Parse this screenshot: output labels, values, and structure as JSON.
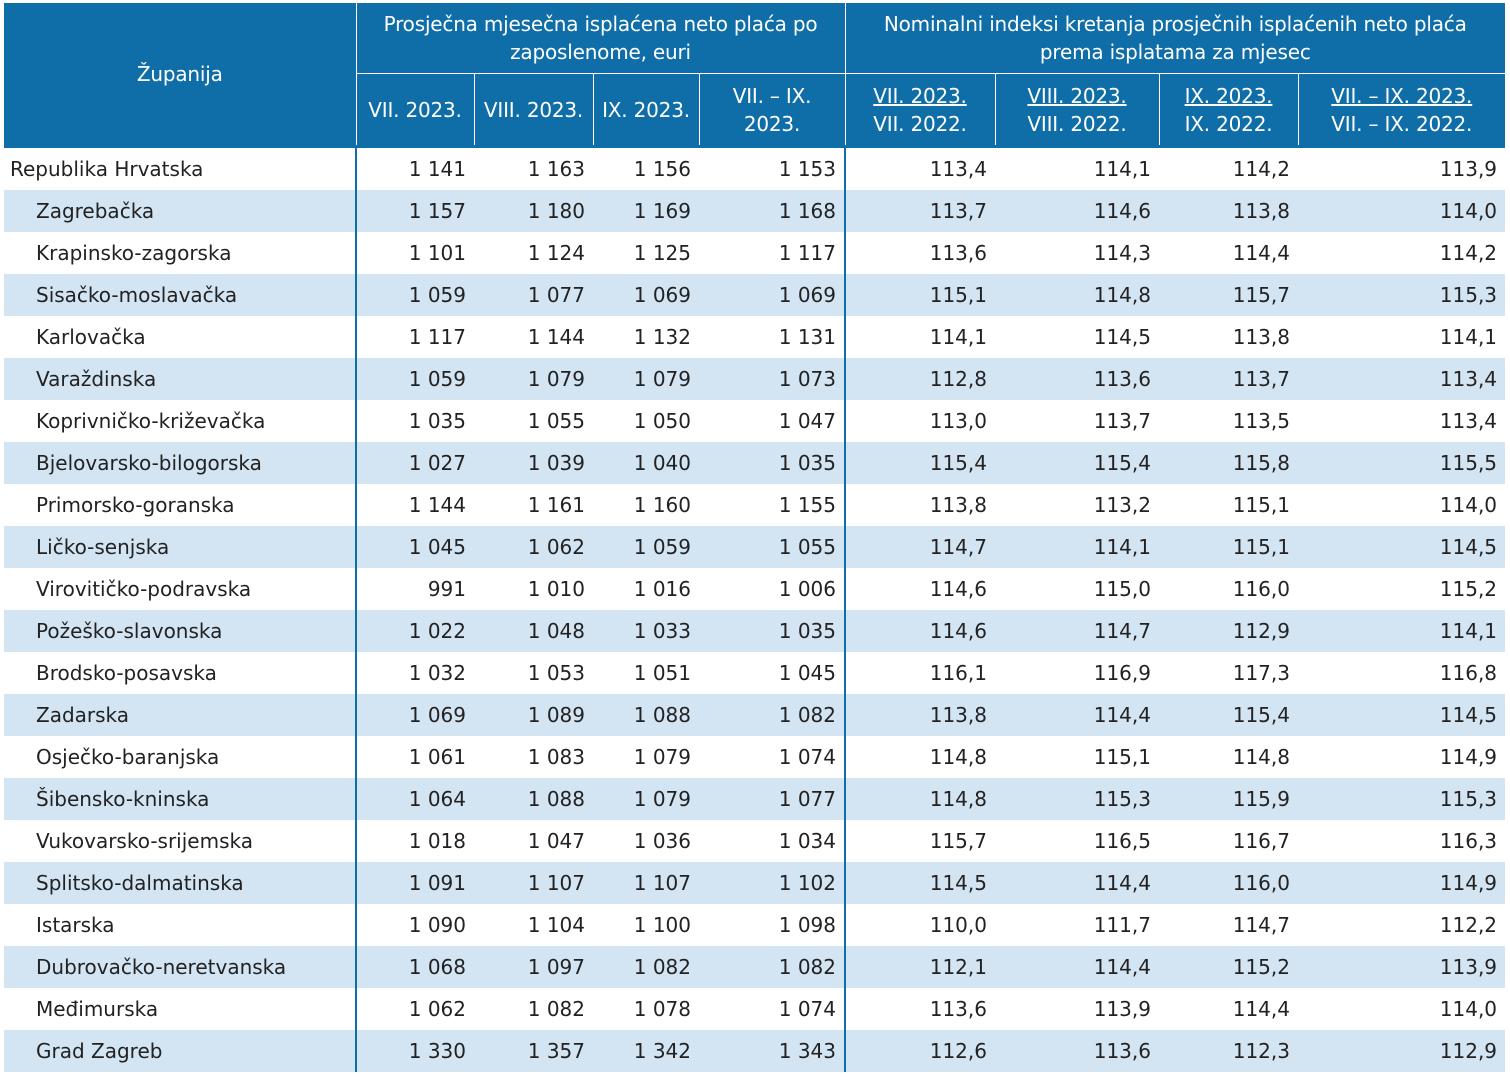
{
  "header": {
    "county": "Županija",
    "group_salary": "Prosječna mjesečna isplaćena neto plaća po zaposlenome, euri",
    "group_index": "Nominalni indeksi kretanja prosječnih isplaćenih neto plaća prema isplatama za mjesec",
    "salary_cols": [
      "VII. 2023.",
      "VIII. 2023.",
      "IX. 2023.",
      "VII. – IX. 2023."
    ],
    "index_cols": [
      {
        "top": "VII. 2023.",
        "bottom": "VII. 2022."
      },
      {
        "top": "VIII. 2023.",
        "bottom": "VIII. 2022."
      },
      {
        "top": "IX. 2023.",
        "bottom": "IX. 2022."
      },
      {
        "top": "VII. – IX. 2023.",
        "bottom": "VII. – IX. 2022."
      }
    ]
  },
  "rows": [
    {
      "name": "Republika Hrvatska",
      "values": [
        "1 141",
        "1 163",
        "1 156",
        "1 153",
        "113,4",
        "114,1",
        "114,2",
        "113,9"
      ]
    },
    {
      "name": "Zagrebačka",
      "values": [
        "1 157",
        "1 180",
        "1 169",
        "1 168",
        "113,7",
        "114,6",
        "113,8",
        "114,0"
      ]
    },
    {
      "name": "Krapinsko-zagorska",
      "values": [
        "1 101",
        "1 124",
        "1 125",
        "1 117",
        "113,6",
        "114,3",
        "114,4",
        "114,2"
      ]
    },
    {
      "name": "Sisačko-moslavačka",
      "values": [
        "1 059",
        "1 077",
        "1 069",
        "1 069",
        "115,1",
        "114,8",
        "115,7",
        "115,3"
      ]
    },
    {
      "name": "Karlovačka",
      "values": [
        "1 117",
        "1 144",
        "1 132",
        "1 131",
        "114,1",
        "114,5",
        "113,8",
        "114,1"
      ]
    },
    {
      "name": "Varaždinska",
      "values": [
        "1 059",
        "1 079",
        "1 079",
        "1 073",
        "112,8",
        "113,6",
        "113,7",
        "113,4"
      ]
    },
    {
      "name": "Koprivničko-križevačka",
      "values": [
        "1 035",
        "1 055",
        "1 050",
        "1 047",
        "113,0",
        "113,7",
        "113,5",
        "113,4"
      ]
    },
    {
      "name": "Bjelovarsko-bilogorska",
      "values": [
        "1 027",
        "1 039",
        "1 040",
        "1 035",
        "115,4",
        "115,4",
        "115,8",
        "115,5"
      ]
    },
    {
      "name": "Primorsko-goranska",
      "values": [
        "1 144",
        "1 161",
        "1 160",
        "1 155",
        "113,8",
        "113,2",
        "115,1",
        "114,0"
      ]
    },
    {
      "name": "Ličko-senjska",
      "values": [
        "1 045",
        "1 062",
        "1 059",
        "1 055",
        "114,7",
        "114,1",
        "115,1",
        "114,5"
      ]
    },
    {
      "name": "Virovitičko-podravska",
      "values": [
        "991",
        "1 010",
        "1 016",
        "1 006",
        "114,6",
        "115,0",
        "116,0",
        "115,2"
      ]
    },
    {
      "name": "Požeško-slavonska",
      "values": [
        "1 022",
        "1 048",
        "1 033",
        "1 035",
        "114,6",
        "114,7",
        "112,9",
        "114,1"
      ]
    },
    {
      "name": "Brodsko-posavska",
      "values": [
        "1 032",
        "1 053",
        "1 051",
        "1 045",
        "116,1",
        "116,9",
        "117,3",
        "116,8"
      ]
    },
    {
      "name": "Zadarska",
      "values": [
        "1 069",
        "1 089",
        "1 088",
        "1 082",
        "113,8",
        "114,4",
        "115,4",
        "114,5"
      ]
    },
    {
      "name": "Osječko-baranjska",
      "values": [
        "1 061",
        "1 083",
        "1 079",
        "1 074",
        "114,8",
        "115,1",
        "114,8",
        "114,9"
      ]
    },
    {
      "name": "Šibensko-kninska",
      "values": [
        "1 064",
        "1 088",
        "1 079",
        "1 077",
        "114,8",
        "115,3",
        "115,9",
        "115,3"
      ]
    },
    {
      "name": "Vukovarsko-srijemska",
      "values": [
        "1 018",
        "1 047",
        "1 036",
        "1 034",
        "115,7",
        "116,5",
        "116,7",
        "116,3"
      ]
    },
    {
      "name": "Splitsko-dalmatinska",
      "values": [
        "1 091",
        "1 107",
        "1 107",
        "1 102",
        "114,5",
        "114,4",
        "116,0",
        "114,9"
      ]
    },
    {
      "name": "Istarska",
      "values": [
        "1 090",
        "1 104",
        "1 100",
        "1 098",
        "110,0",
        "111,7",
        "114,7",
        "112,2"
      ]
    },
    {
      "name": "Dubrovačko-neretvanska",
      "values": [
        "1 068",
        "1 097",
        "1 082",
        "1 082",
        "112,1",
        "114,4",
        "115,2",
        "113,9"
      ]
    },
    {
      "name": "Međimurska",
      "values": [
        "1 062",
        "1 082",
        "1 078",
        "1 074",
        "113,6",
        "113,9",
        "114,4",
        "114,0"
      ]
    },
    {
      "name": "Grad Zagreb",
      "values": [
        "1 330",
        "1 357",
        "1 342",
        "1 343",
        "112,6",
        "113,6",
        "112,3",
        "112,9"
      ]
    }
  ]
}
